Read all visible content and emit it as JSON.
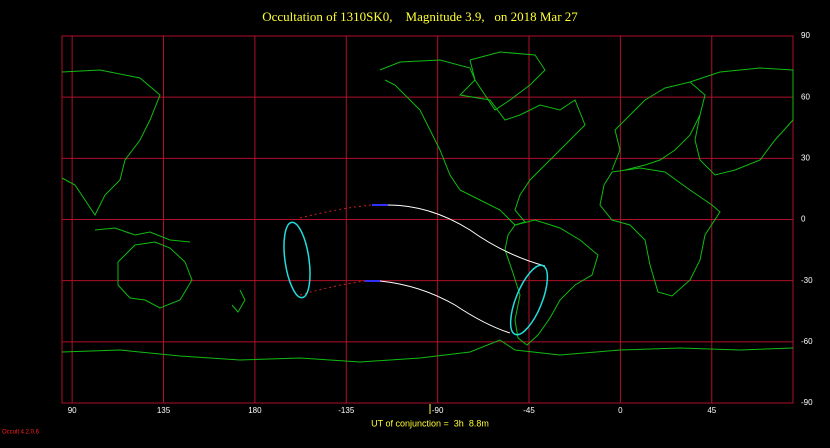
{
  "map": {
    "title": "Occultation of 1310SK0,    Magnitude 3.9,   on 2018 Mar 27",
    "xlim": [
      85,
      445
    ],
    "ylim": [
      -90,
      90
    ],
    "xticks": [
      90,
      135,
      180,
      {
        "value": 225,
        "label": "-135"
      },
      {
        "value": 270,
        "label": "-90"
      },
      {
        "value": 315,
        "label": "-45"
      },
      {
        "value": 360,
        "label": "0"
      },
      {
        "value": 405,
        "label": "45"
      }
    ],
    "yticks": [
      90,
      60,
      30,
      0,
      -30,
      -60,
      -90
    ],
    "footer": "UT of conjunction =  3h  8.8m",
    "version": "Occult 4.2.0.6"
  }
}
